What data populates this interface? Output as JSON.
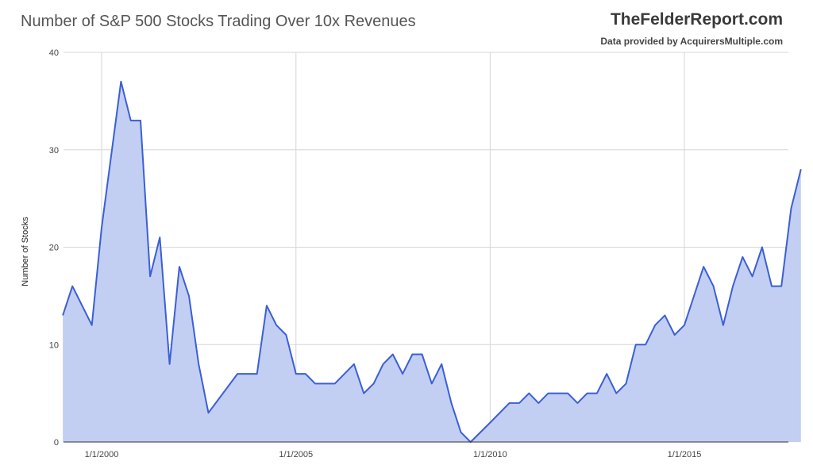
{
  "header": {
    "title": "Number of S&P 500 Stocks Trading Over 10x Revenues",
    "brand": "TheFelderReport.com",
    "credit": "Data provided by AcquirersMultiple.com"
  },
  "colors": {
    "line": "#3b5fd6",
    "fill": "#c2cff2",
    "grid": "#d6d6d6"
  },
  "chart_data": {
    "type": "area",
    "title": "Number of S&P 500 Stocks Trading Over 10x Revenues",
    "xlabel": "",
    "ylabel": "Number of Stocks",
    "ylim": [
      0,
      40
    ],
    "xlim": [
      "1999-01-01",
      "2017-09-01"
    ],
    "grid": true,
    "yticks": [
      "0",
      "10",
      "20",
      "30",
      "40"
    ],
    "xticks": [
      {
        "date": "2000-01-01",
        "label": "1/1/2000"
      },
      {
        "date": "2005-01-01",
        "label": "1/1/2005"
      },
      {
        "date": "2010-01-01",
        "label": "1/1/2010"
      },
      {
        "date": "2015-01-01",
        "label": "1/1/2015"
      }
    ],
    "series": [
      {
        "points": [
          [
            "1999-01-01",
            13
          ],
          [
            "1999-04-01",
            16
          ],
          [
            "1999-10-01",
            12
          ],
          [
            "2000-01-01",
            22
          ],
          [
            "2000-07-01",
            37
          ],
          [
            "2000-10-01",
            33
          ],
          [
            "2001-01-01",
            33
          ],
          [
            "2001-04-01",
            17
          ],
          [
            "2001-07-01",
            21
          ],
          [
            "2001-10-01",
            8
          ],
          [
            "2002-01-01",
            18
          ],
          [
            "2002-04-01",
            15
          ],
          [
            "2002-07-01",
            8
          ],
          [
            "2002-10-01",
            3
          ],
          [
            "2003-07-01",
            7
          ],
          [
            "2003-10-01",
            7
          ],
          [
            "2004-01-01",
            7
          ],
          [
            "2004-04-01",
            14
          ],
          [
            "2004-07-01",
            12
          ],
          [
            "2004-10-01",
            11
          ],
          [
            "2005-01-01",
            7
          ],
          [
            "2005-04-01",
            7
          ],
          [
            "2005-07-01",
            6
          ],
          [
            "2006-01-01",
            6
          ],
          [
            "2006-07-01",
            8
          ],
          [
            "2006-10-01",
            5
          ],
          [
            "2007-01-01",
            6
          ],
          [
            "2007-04-01",
            8
          ],
          [
            "2007-07-01",
            9
          ],
          [
            "2007-10-01",
            7
          ],
          [
            "2008-01-01",
            9
          ],
          [
            "2008-04-01",
            9
          ],
          [
            "2008-07-01",
            6
          ],
          [
            "2008-10-01",
            8
          ],
          [
            "2009-01-01",
            4
          ],
          [
            "2009-04-01",
            1
          ],
          [
            "2009-07-01",
            0
          ],
          [
            "2010-01-01",
            2
          ],
          [
            "2010-07-01",
            4
          ],
          [
            "2010-10-01",
            4
          ],
          [
            "2011-01-01",
            5
          ],
          [
            "2011-04-01",
            4
          ],
          [
            "2011-07-01",
            5
          ],
          [
            "2012-01-01",
            5
          ],
          [
            "2012-04-01",
            4
          ],
          [
            "2012-07-01",
            5
          ],
          [
            "2012-10-01",
            5
          ],
          [
            "2013-01-01",
            7
          ],
          [
            "2013-04-01",
            5
          ],
          [
            "2013-07-01",
            6
          ],
          [
            "2013-10-01",
            10
          ],
          [
            "2014-01-01",
            10
          ],
          [
            "2014-04-01",
            12
          ],
          [
            "2014-07-01",
            13
          ],
          [
            "2014-10-01",
            11
          ],
          [
            "2015-01-01",
            12
          ],
          [
            "2015-07-01",
            18
          ],
          [
            "2015-10-01",
            16
          ],
          [
            "2016-01-01",
            12
          ],
          [
            "2016-04-01",
            16
          ],
          [
            "2016-07-01",
            19
          ],
          [
            "2016-10-01",
            17
          ],
          [
            "2017-01-01",
            20
          ],
          [
            "2017-04-01",
            16
          ],
          [
            "2017-07-01",
            16
          ],
          [
            "2017-10-01",
            24
          ],
          [
            "2018-01-01",
            28
          ]
        ]
      }
    ]
  }
}
